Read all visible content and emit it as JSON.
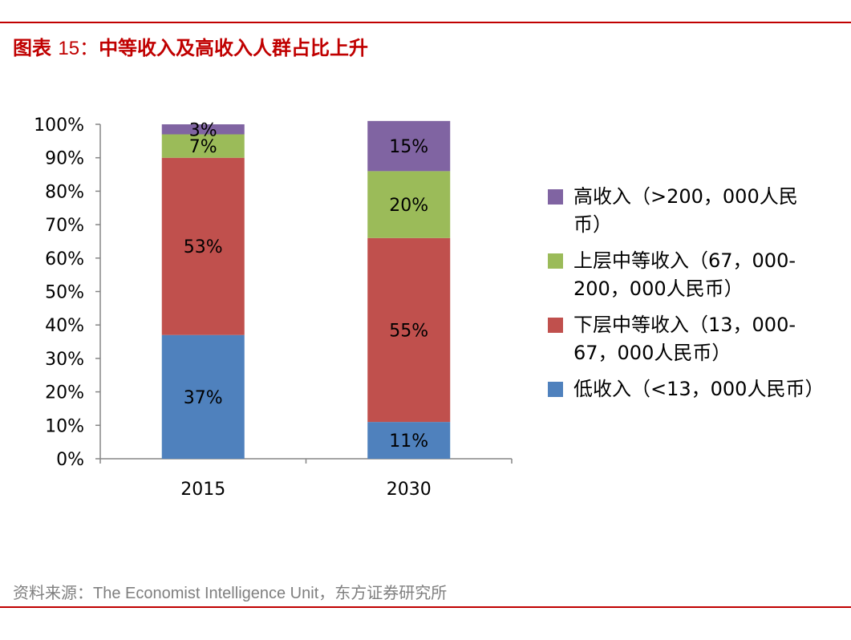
{
  "header": {
    "title_prefix": "图表",
    "title_number": "15：",
    "title_text": "中等收入及高收入人群占比上升"
  },
  "source": "资料来源：The Economist Intelligence Unit，东方证券研究所",
  "colors": {
    "accent": "#c00000",
    "high": "#8064a2",
    "upper_middle": "#9bbb59",
    "lower_middle": "#c0504d",
    "low": "#4f81bd"
  },
  "chart_data": {
    "type": "bar",
    "stacked": true,
    "categories": [
      "2015",
      "2030"
    ],
    "y_ticks": [
      "0%",
      "10%",
      "20%",
      "30%",
      "40%",
      "50%",
      "60%",
      "70%",
      "80%",
      "90%",
      "100%"
    ],
    "ylim": [
      0,
      100
    ],
    "series": [
      {
        "key": "low",
        "name": "低收入（<13，000人民币）",
        "values": [
          37,
          11
        ],
        "labels": [
          "37%",
          "11%"
        ],
        "color": "#4f81bd"
      },
      {
        "key": "lower_middle",
        "name": "下层中等收入（13，000-67，000人民币）",
        "values": [
          53,
          55
        ],
        "labels": [
          "53%",
          "55%"
        ],
        "color": "#c0504d"
      },
      {
        "key": "upper_middle",
        "name": "上层中等收入（67，000-200，000人民币）",
        "values": [
          7,
          20
        ],
        "labels": [
          "7%",
          "20%"
        ],
        "color": "#9bbb59"
      },
      {
        "key": "high",
        "name": "高收入（>200，000人民币）",
        "values": [
          3,
          15
        ],
        "labels": [
          "3%",
          "15%"
        ],
        "color": "#8064a2"
      }
    ]
  },
  "legend": [
    {
      "key": "high",
      "label": "高收入（>200，000人民币）",
      "color": "#8064a2"
    },
    {
      "key": "upper_middle",
      "label": "上层中等收入（67，000-200，000人民币）",
      "color": "#9bbb59"
    },
    {
      "key": "lower_middle",
      "label": "下层中等收入（13，000-67，000人民币）",
      "color": "#c0504d"
    },
    {
      "key": "low",
      "label": "低收入（<13，000人民币）",
      "color": "#4f81bd"
    }
  ]
}
